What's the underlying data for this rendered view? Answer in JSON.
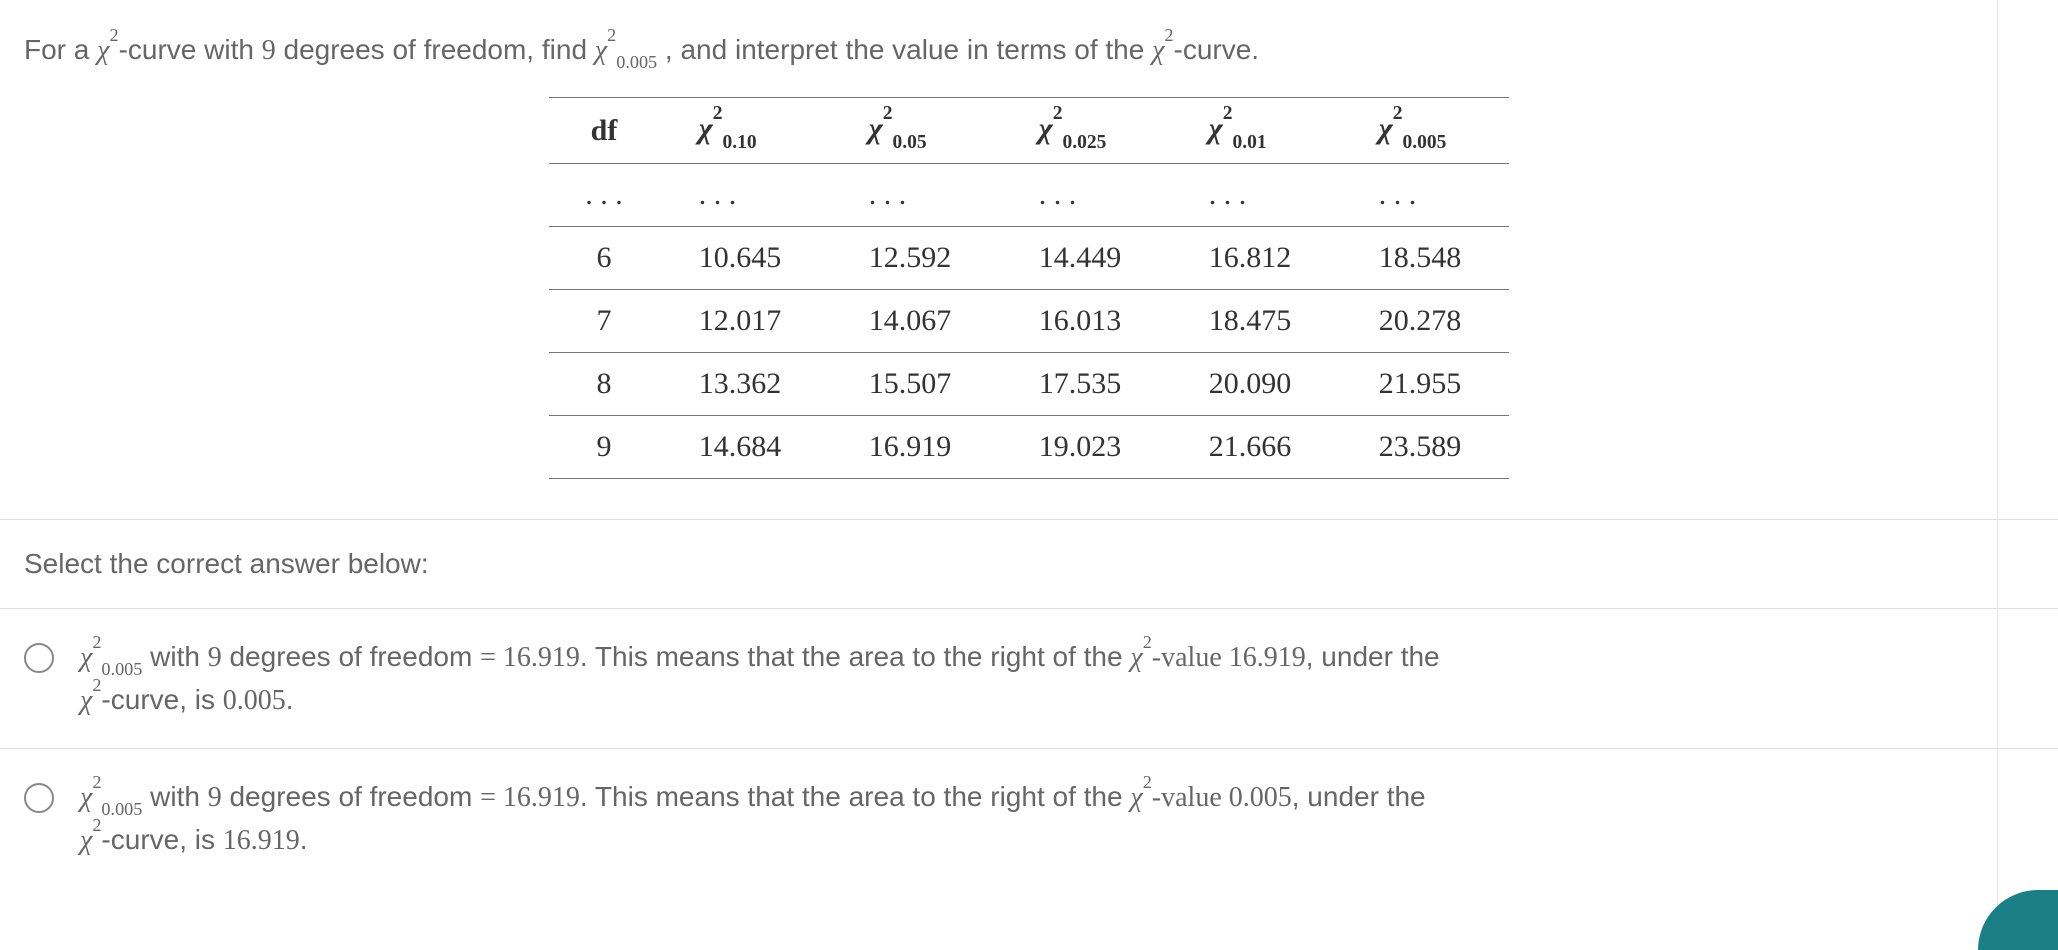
{
  "prompt": {
    "pre": "For a ",
    "chi2": "χ",
    "mid1": "-curve with ",
    "df": "9",
    "mid2": " degrees of freedom, find ",
    "chi2_sub": "0.005",
    "mid3": ", and interpret the value in terms of the ",
    "post": "-curve."
  },
  "table": {
    "header_df": "df",
    "headers_sub": [
      "0.10",
      "0.05",
      "0.025",
      "0.01",
      "0.005"
    ],
    "ellipsis": ". . .",
    "rows": [
      {
        "df": "6",
        "vals": [
          "10.645",
          "12.592",
          "14.449",
          "16.812",
          "18.548"
        ]
      },
      {
        "df": "7",
        "vals": [
          "12.017",
          "14.067",
          "16.013",
          "18.475",
          "20.278"
        ]
      },
      {
        "df": "8",
        "vals": [
          "13.362",
          "15.507",
          "17.535",
          "20.090",
          "21.955"
        ]
      },
      {
        "df": "9",
        "vals": [
          "14.684",
          "16.919",
          "19.023",
          "21.666",
          "23.589"
        ]
      }
    ]
  },
  "select_label": "Select the correct answer below:",
  "answers": [
    {
      "chi_sub": "0.005",
      "seg1": " with ",
      "df": "9",
      "seg2": " degrees of freedom ",
      "eq": "= 16.919",
      "seg3": ". This means that the area to the right of the ",
      "value_phrase": "-value 16.919",
      "seg4": ", under the ",
      "seg5": "-curve, is ",
      "tail": "0.005",
      "period": "."
    },
    {
      "chi_sub": "0.005",
      "seg1": " with ",
      "df": "9",
      "seg2": " degrees of freedom ",
      "eq": "= 16.919",
      "seg3": ". This means that the area to the right of the ",
      "value_phrase": "-value 0.005",
      "seg4": ", under the ",
      "seg5": "-curve, is ",
      "tail": "16.919",
      "period": "."
    }
  ],
  "colors": {
    "text": "#666666",
    "border": "#777777",
    "divider": "#dddddd",
    "accent": "#1b7f86"
  }
}
